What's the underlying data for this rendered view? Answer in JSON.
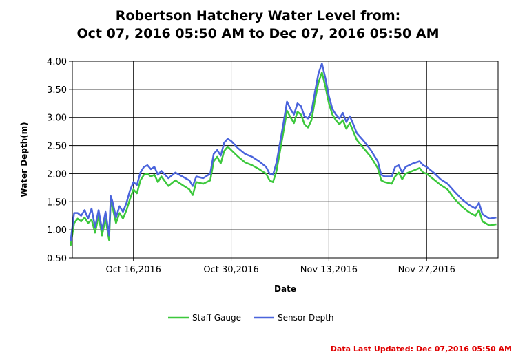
{
  "chart_data": {
    "type": "line",
    "title_line1": "Robertson Hatchery Water Level from:",
    "title_line2": "Oct 07, 2016 05:50 AM to Dec 07, 2016 05:50 AM",
    "xlabel": "Date",
    "ylabel": "Water Depth(m)",
    "ylim": [
      0.5,
      4.0
    ],
    "yticks": [
      "0.50",
      "1.00",
      "1.50",
      "2.00",
      "2.50",
      "3.00",
      "3.50",
      "4.00"
    ],
    "xlim": [
      "2016-10-07",
      "2016-12-07"
    ],
    "xticks": [
      {
        "date": "2016-10-16",
        "label": "Oct 16,2016"
      },
      {
        "date": "2016-10-30",
        "label": "Oct 30,2016"
      },
      {
        "date": "2016-11-13",
        "label": "Nov 13,2016"
      },
      {
        "date": "2016-11-27",
        "label": "Nov 27,2016"
      }
    ],
    "grid": true,
    "legend_position": "bottom-center",
    "series": [
      {
        "name": "Staff Gauge",
        "color": "#3cc83c",
        "points": [
          [
            "2016-10-07",
            0.72
          ],
          [
            "2016-10-07T12:00",
            1.12
          ],
          [
            "2016-10-08",
            1.2
          ],
          [
            "2016-10-08T12:00",
            1.15
          ],
          [
            "2016-10-09",
            1.22
          ],
          [
            "2016-10-09T12:00",
            1.12
          ],
          [
            "2016-10-10",
            1.18
          ],
          [
            "2016-10-10T12:00",
            0.95
          ],
          [
            "2016-10-11",
            1.25
          ],
          [
            "2016-10-11T12:00",
            0.9
          ],
          [
            "2016-10-12",
            1.2
          ],
          [
            "2016-10-12T12:00",
            0.82
          ],
          [
            "2016-10-12T18:00",
            1.52
          ],
          [
            "2016-10-13",
            1.4
          ],
          [
            "2016-10-13T12:00",
            1.12
          ],
          [
            "2016-10-14",
            1.3
          ],
          [
            "2016-10-14T12:00",
            1.2
          ],
          [
            "2016-10-15",
            1.35
          ],
          [
            "2016-10-15T12:00",
            1.55
          ],
          [
            "2016-10-16",
            1.72
          ],
          [
            "2016-10-16T12:00",
            1.65
          ],
          [
            "2016-10-17",
            1.88
          ],
          [
            "2016-10-17T12:00",
            1.98
          ],
          [
            "2016-10-18",
            2.0
          ],
          [
            "2016-10-18T12:00",
            1.95
          ],
          [
            "2016-10-19",
            1.98
          ],
          [
            "2016-10-19T12:00",
            1.85
          ],
          [
            "2016-10-20",
            1.95
          ],
          [
            "2016-10-21",
            1.78
          ],
          [
            "2016-10-22",
            1.88
          ],
          [
            "2016-10-23",
            1.8
          ],
          [
            "2016-10-24",
            1.72
          ],
          [
            "2016-10-24T12:00",
            1.62
          ],
          [
            "2016-10-25",
            1.85
          ],
          [
            "2016-10-26",
            1.82
          ],
          [
            "2016-10-27",
            1.88
          ],
          [
            "2016-10-27T12:00",
            2.22
          ],
          [
            "2016-10-28",
            2.3
          ],
          [
            "2016-10-28T12:00",
            2.18
          ],
          [
            "2016-10-29",
            2.4
          ],
          [
            "2016-10-29T12:00",
            2.48
          ],
          [
            "2016-10-30",
            2.42
          ],
          [
            "2016-10-31",
            2.3
          ],
          [
            "2016-11-01",
            2.2
          ],
          [
            "2016-11-02",
            2.15
          ],
          [
            "2016-11-03",
            2.08
          ],
          [
            "2016-11-04",
            2.0
          ],
          [
            "2016-11-04T12:00",
            1.88
          ],
          [
            "2016-11-05",
            1.85
          ],
          [
            "2016-11-05T12:00",
            2.05
          ],
          [
            "2016-11-06",
            2.4
          ],
          [
            "2016-11-06T12:00",
            2.75
          ],
          [
            "2016-11-07",
            3.12
          ],
          [
            "2016-11-07T12:00",
            3.0
          ],
          [
            "2016-11-08",
            2.9
          ],
          [
            "2016-11-08T12:00",
            3.1
          ],
          [
            "2016-11-09",
            3.05
          ],
          [
            "2016-11-09T12:00",
            2.88
          ],
          [
            "2016-11-10",
            2.82
          ],
          [
            "2016-11-10T12:00",
            2.95
          ],
          [
            "2016-11-11",
            3.3
          ],
          [
            "2016-11-11T12:00",
            3.62
          ],
          [
            "2016-11-12",
            3.8
          ],
          [
            "2016-11-12T12:00",
            3.55
          ],
          [
            "2016-11-13",
            3.25
          ],
          [
            "2016-11-13T12:00",
            3.05
          ],
          [
            "2016-11-14",
            2.95
          ],
          [
            "2016-11-14T12:00",
            2.88
          ],
          [
            "2016-11-15",
            2.95
          ],
          [
            "2016-11-15T12:00",
            2.8
          ],
          [
            "2016-11-16",
            2.9
          ],
          [
            "2016-11-16T12:00",
            2.75
          ],
          [
            "2016-11-17",
            2.6
          ],
          [
            "2016-11-18",
            2.45
          ],
          [
            "2016-11-19",
            2.3
          ],
          [
            "2016-11-20",
            2.1
          ],
          [
            "2016-11-20T12:00",
            1.88
          ],
          [
            "2016-11-21",
            1.85
          ],
          [
            "2016-11-22",
            1.82
          ],
          [
            "2016-11-22T12:00",
            1.95
          ],
          [
            "2016-11-23",
            2.02
          ],
          [
            "2016-11-23T12:00",
            1.9
          ],
          [
            "2016-11-24",
            2.0
          ],
          [
            "2016-11-25",
            2.05
          ],
          [
            "2016-11-26",
            2.1
          ],
          [
            "2016-11-26T12:00",
            2.02
          ],
          [
            "2016-11-27",
            2.0
          ],
          [
            "2016-11-28",
            1.9
          ],
          [
            "2016-11-29",
            1.8
          ],
          [
            "2016-11-30",
            1.72
          ],
          [
            "2016-12-01",
            1.55
          ],
          [
            "2016-12-02",
            1.42
          ],
          [
            "2016-12-03",
            1.32
          ],
          [
            "2016-12-04",
            1.25
          ],
          [
            "2016-12-04T12:00",
            1.35
          ],
          [
            "2016-12-05",
            1.15
          ],
          [
            "2016-12-06",
            1.08
          ],
          [
            "2016-12-07",
            1.1
          ]
        ]
      },
      {
        "name": "Sensor Depth",
        "color": "#4a64dc",
        "points": [
          [
            "2016-10-07",
            0.8
          ],
          [
            "2016-10-07T12:00",
            1.3
          ],
          [
            "2016-10-08",
            1.3
          ],
          [
            "2016-10-08T12:00",
            1.25
          ],
          [
            "2016-10-09",
            1.35
          ],
          [
            "2016-10-09T12:00",
            1.2
          ],
          [
            "2016-10-10",
            1.38
          ],
          [
            "2016-10-10T12:00",
            1.05
          ],
          [
            "2016-10-11",
            1.35
          ],
          [
            "2016-10-11T12:00",
            1.0
          ],
          [
            "2016-10-12",
            1.32
          ],
          [
            "2016-10-12T12:00",
            0.9
          ],
          [
            "2016-10-12T18:00",
            1.6
          ],
          [
            "2016-10-13",
            1.5
          ],
          [
            "2016-10-13T12:00",
            1.22
          ],
          [
            "2016-10-14",
            1.42
          ],
          [
            "2016-10-14T12:00",
            1.32
          ],
          [
            "2016-10-15",
            1.48
          ],
          [
            "2016-10-15T12:00",
            1.7
          ],
          [
            "2016-10-16",
            1.85
          ],
          [
            "2016-10-16T12:00",
            1.8
          ],
          [
            "2016-10-17",
            2.02
          ],
          [
            "2016-10-17T12:00",
            2.12
          ],
          [
            "2016-10-18",
            2.15
          ],
          [
            "2016-10-18T12:00",
            2.08
          ],
          [
            "2016-10-19",
            2.12
          ],
          [
            "2016-10-19T12:00",
            1.98
          ],
          [
            "2016-10-20",
            2.05
          ],
          [
            "2016-10-21",
            1.92
          ],
          [
            "2016-10-22",
            2.02
          ],
          [
            "2016-10-23",
            1.95
          ],
          [
            "2016-10-24",
            1.88
          ],
          [
            "2016-10-24T12:00",
            1.78
          ],
          [
            "2016-10-25",
            1.95
          ],
          [
            "2016-10-26",
            1.92
          ],
          [
            "2016-10-27",
            2.0
          ],
          [
            "2016-10-27T12:00",
            2.35
          ],
          [
            "2016-10-28",
            2.42
          ],
          [
            "2016-10-28T12:00",
            2.32
          ],
          [
            "2016-10-29",
            2.55
          ],
          [
            "2016-10-29T12:00",
            2.62
          ],
          [
            "2016-10-30",
            2.58
          ],
          [
            "2016-10-31",
            2.45
          ],
          [
            "2016-11-01",
            2.35
          ],
          [
            "2016-11-02",
            2.3
          ],
          [
            "2016-11-03",
            2.22
          ],
          [
            "2016-11-04",
            2.12
          ],
          [
            "2016-11-04T12:00",
            2.0
          ],
          [
            "2016-11-05",
            1.98
          ],
          [
            "2016-11-05T12:00",
            2.2
          ],
          [
            "2016-11-06",
            2.55
          ],
          [
            "2016-11-06T12:00",
            2.9
          ],
          [
            "2016-11-07",
            3.28
          ],
          [
            "2016-11-07T12:00",
            3.15
          ],
          [
            "2016-11-08",
            3.05
          ],
          [
            "2016-11-08T12:00",
            3.25
          ],
          [
            "2016-11-09",
            3.2
          ],
          [
            "2016-11-09T12:00",
            3.02
          ],
          [
            "2016-11-10",
            2.98
          ],
          [
            "2016-11-10T12:00",
            3.1
          ],
          [
            "2016-11-11",
            3.45
          ],
          [
            "2016-11-11T12:00",
            3.78
          ],
          [
            "2016-11-12",
            3.96
          ],
          [
            "2016-11-12T12:00",
            3.7
          ],
          [
            "2016-11-13",
            3.38
          ],
          [
            "2016-11-13T12:00",
            3.15
          ],
          [
            "2016-11-14",
            3.05
          ],
          [
            "2016-11-14T12:00",
            2.98
          ],
          [
            "2016-11-15",
            3.08
          ],
          [
            "2016-11-15T12:00",
            2.92
          ],
          [
            "2016-11-16",
            3.02
          ],
          [
            "2016-11-16T12:00",
            2.88
          ],
          [
            "2016-11-17",
            2.72
          ],
          [
            "2016-11-18",
            2.58
          ],
          [
            "2016-11-19",
            2.42
          ],
          [
            "2016-11-20",
            2.22
          ],
          [
            "2016-11-20T12:00",
            1.98
          ],
          [
            "2016-11-21",
            1.95
          ],
          [
            "2016-11-22",
            1.95
          ],
          [
            "2016-11-22T12:00",
            2.12
          ],
          [
            "2016-11-23",
            2.15
          ],
          [
            "2016-11-23T12:00",
            2.02
          ],
          [
            "2016-11-24",
            2.12
          ],
          [
            "2016-11-25",
            2.18
          ],
          [
            "2016-11-26",
            2.22
          ],
          [
            "2016-11-26T12:00",
            2.15
          ],
          [
            "2016-11-27",
            2.12
          ],
          [
            "2016-11-28",
            2.02
          ],
          [
            "2016-11-29",
            1.9
          ],
          [
            "2016-11-30",
            1.82
          ],
          [
            "2016-12-01",
            1.68
          ],
          [
            "2016-12-02",
            1.55
          ],
          [
            "2016-12-03",
            1.45
          ],
          [
            "2016-12-04",
            1.38
          ],
          [
            "2016-12-04T12:00",
            1.48
          ],
          [
            "2016-12-05",
            1.28
          ],
          [
            "2016-12-06",
            1.2
          ],
          [
            "2016-12-07",
            1.22
          ]
        ]
      }
    ]
  },
  "footer": {
    "text": "Data Last Updated: Dec 07,2016 05:50 AM",
    "color": "#e00000"
  }
}
